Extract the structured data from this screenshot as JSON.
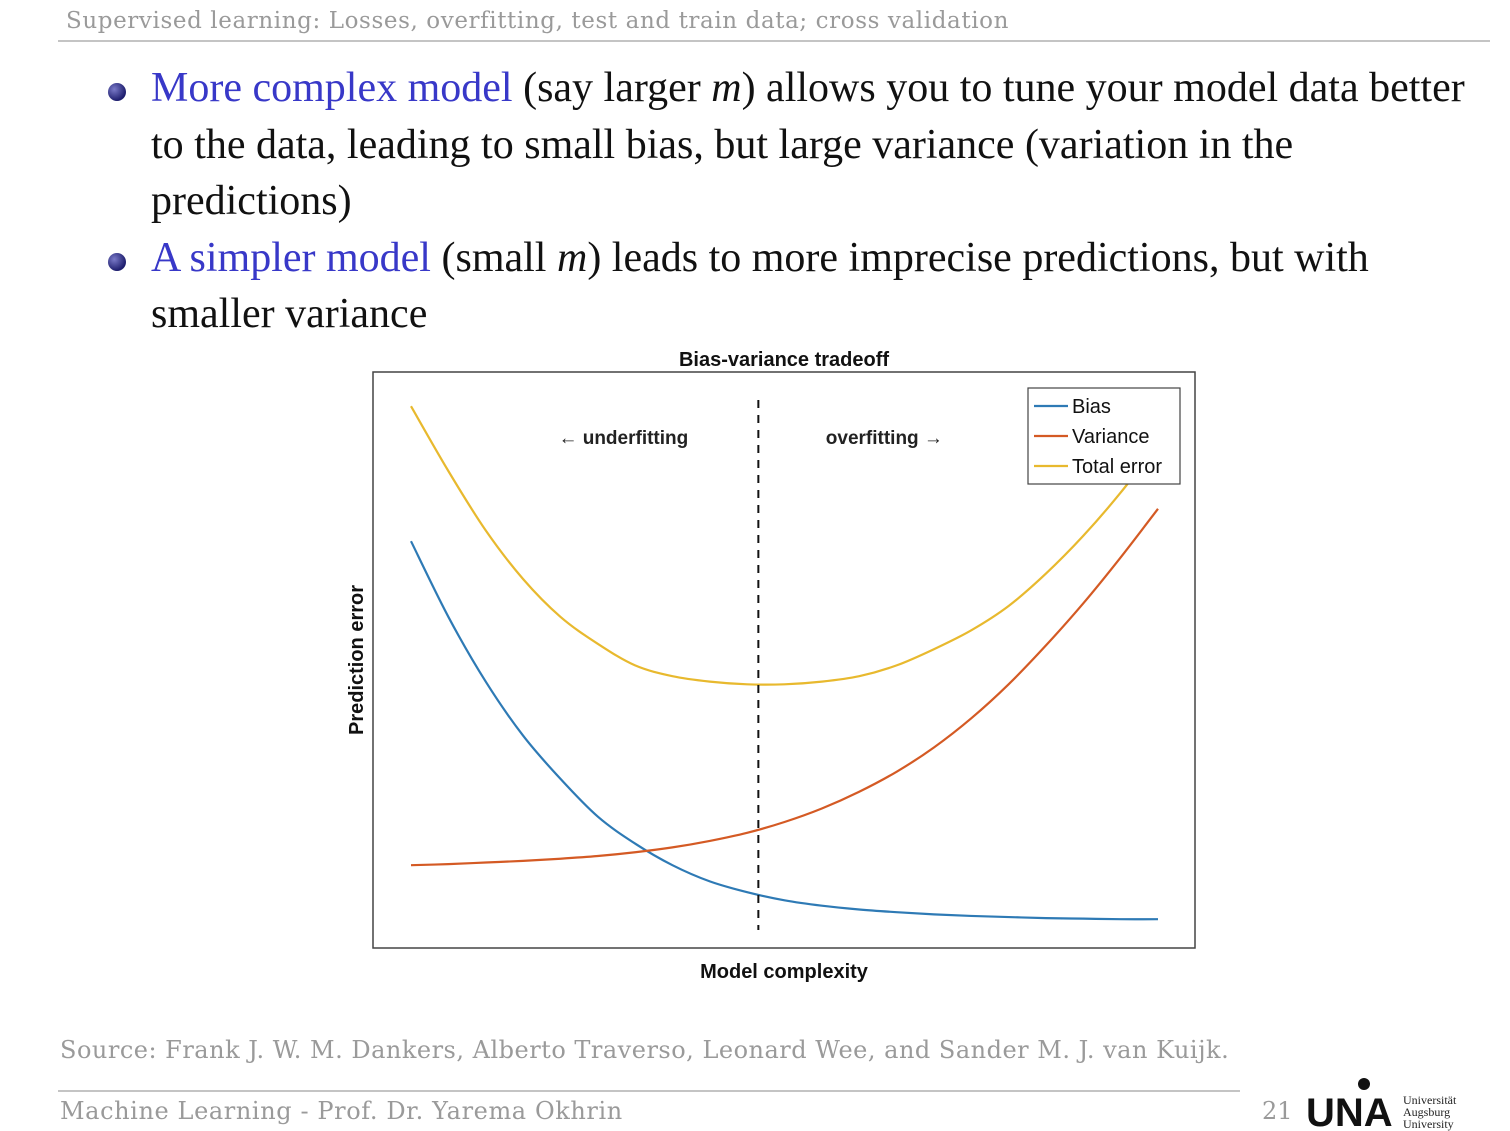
{
  "slide": {
    "header_title": "Supervised learning: Losses, overfitting, test and train data; cross validation",
    "bullets": [
      {
        "highlight": "More complex model",
        "text_1": " (say larger ",
        "math": "m",
        "text_2": ") allows you to tune your model data better to the data, leading to small bias, but large variance (variation in the predictions)"
      },
      {
        "highlight": "A simpler model",
        "text_1": " (small ",
        "math": "m",
        "text_2": ") leads to more imprecise predictions, but with smaller variance"
      }
    ],
    "source": "Source: Frank J. W. M. Dankers, Alberto Traverso, Leonard Wee, and Sander M. J. van Kuijk.",
    "footer": "Machine Learning  -  Prof. Dr. Yarema Okhrin",
    "page_number": "21",
    "logo_caption": [
      "Universität",
      "Augsburg",
      "University"
    ],
    "colors": {
      "highlight": "#3838c8",
      "header_gray": "#9a9a9a"
    }
  },
  "chart_data": {
    "type": "line",
    "title": "Bias-variance tradeoff",
    "xlabel": "Model complexity",
    "ylabel": "Prediction error",
    "xlim": [
      0,
      1
    ],
    "ylim": [
      0,
      1
    ],
    "grid": false,
    "ticks_shown": false,
    "legend_position": "top-right",
    "x": [
      0,
      0.05,
      0.1,
      0.15,
      0.2,
      0.25,
      0.3,
      0.35,
      0.4,
      0.45,
      0.5,
      0.55,
      0.6,
      0.65,
      0.7,
      0.75,
      0.8,
      0.85,
      0.9,
      0.95,
      1
    ],
    "series": [
      {
        "name": "Bias",
        "color": "#2e7ab5",
        "values": [
          0.72,
          0.58,
          0.46,
          0.36,
          0.28,
          0.21,
          0.16,
          0.12,
          0.09,
          0.07,
          0.055,
          0.045,
          0.038,
          0.033,
          0.029,
          0.026,
          0.024,
          0.022,
          0.021,
          0.02,
          0.02
        ]
      },
      {
        "name": "Variance",
        "color": "#d45a24",
        "values": [
          0.12,
          0.122,
          0.125,
          0.128,
          0.132,
          0.137,
          0.144,
          0.153,
          0.165,
          0.18,
          0.2,
          0.225,
          0.256,
          0.293,
          0.338,
          0.392,
          0.455,
          0.527,
          0.605,
          0.69,
          0.78
        ]
      },
      {
        "name": "Total error",
        "color": "#e8b92e",
        "values": [
          0.97,
          0.85,
          0.74,
          0.65,
          0.58,
          0.53,
          0.49,
          0.47,
          0.46,
          0.455,
          0.455,
          0.46,
          0.47,
          0.49,
          0.52,
          0.555,
          0.6,
          0.66,
          0.73,
          0.81,
          0.9
        ]
      }
    ],
    "divider_x": 0.465,
    "annotations": [
      {
        "text": "underfitting",
        "arrow": "←"
      },
      {
        "text": "overfitting",
        "arrow": "→"
      }
    ]
  }
}
